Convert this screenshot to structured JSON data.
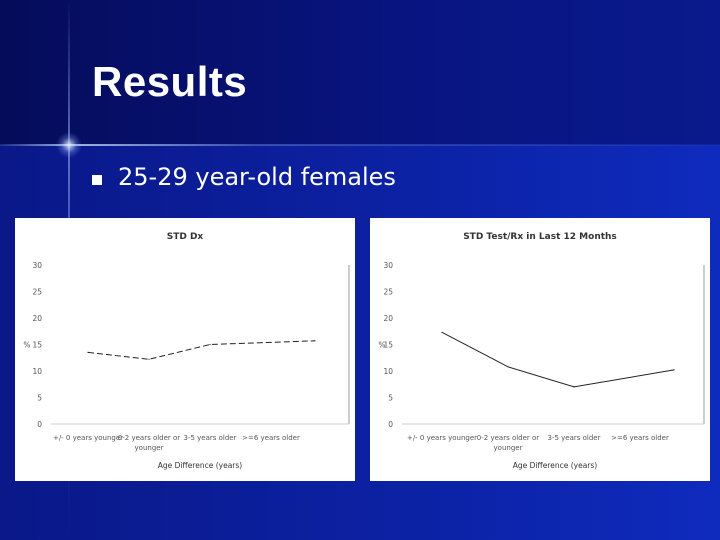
{
  "slide": {
    "title": "Results",
    "bullet_text": "25-29 year-old females"
  },
  "colors": {
    "line": "#222222",
    "axis_text": "#555555"
  },
  "chart_data": [
    {
      "type": "line",
      "title": "STD Dx",
      "xlabel": "Age Difference (years)",
      "ylabel": "%",
      "ylim": [
        0,
        30
      ],
      "yticks": [
        0,
        5,
        10,
        15,
        20,
        25,
        30
      ],
      "categories": [
        [
          "+/- 0 years younger"
        ],
        [
          "0-2 years older or",
          "younger"
        ],
        [
          "3-5 years older"
        ],
        [
          ">=6 years older"
        ]
      ],
      "series": [
        {
          "name": "STD Dx",
          "values": [
            13.5,
            12.2,
            15.0,
            15.7
          ],
          "style": "dashed"
        }
      ]
    },
    {
      "type": "line",
      "title": "STD Test/Rx in Last 12 Months",
      "xlabel": "Age Difference (years)",
      "ylabel": "%",
      "ylim": [
        0,
        30
      ],
      "yticks": [
        0,
        5,
        10,
        15,
        20,
        25,
        30
      ],
      "categories": [
        [
          "+/- 0 years younger"
        ],
        [
          "0-2 years older or",
          "younger"
        ],
        [
          "3-5 years older"
        ],
        [
          ">=6 years older"
        ]
      ],
      "series": [
        {
          "name": "STD Test/Rx",
          "values": [
            17.3,
            10.8,
            7.0,
            10.2
          ],
          "style": "solid"
        }
      ]
    }
  ]
}
